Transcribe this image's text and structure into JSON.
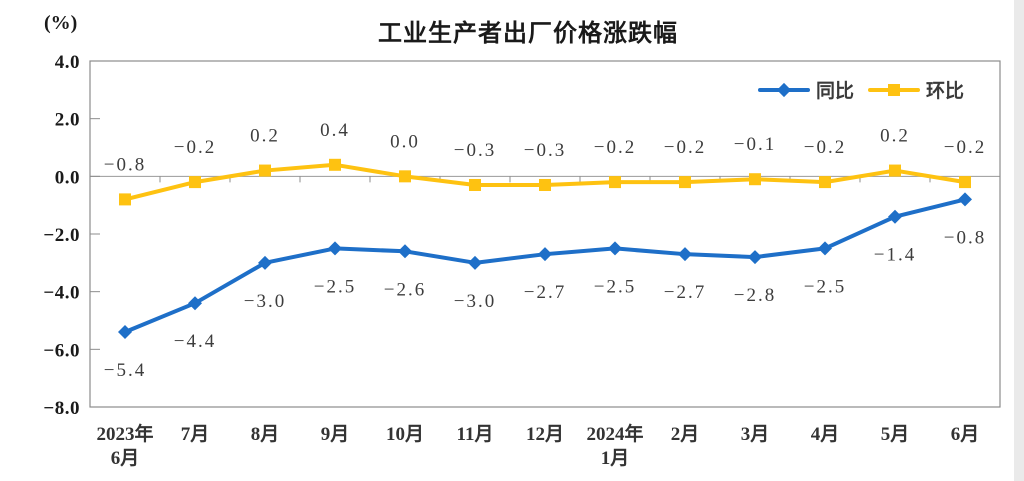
{
  "chart_data": {
    "type": "line",
    "title": "工业生产者出厂价格涨跌幅",
    "ylabel": "(%)",
    "xlabel": "",
    "ylim": [
      -8.0,
      4.0
    ],
    "yticks": [
      4.0,
      2.0,
      0.0,
      -2.0,
      -4.0,
      -6.0,
      -8.0
    ],
    "grid": "zero-line-only",
    "legend_position": "top-right",
    "axis_color": "#8c8c8c",
    "label_color": "#3d3d3d",
    "categories": [
      "2023年\n6月",
      "7月",
      "8月",
      "9月",
      "10月",
      "11月",
      "12月",
      "2024年\n1月",
      "2月",
      "3月",
      "4月",
      "5月",
      "6月"
    ],
    "series": [
      {
        "name": "同比",
        "color": "#1E6FC8",
        "marker": "diamond",
        "label_position": "below",
        "values": [
          -5.4,
          -4.4,
          -3.0,
          -2.5,
          -2.6,
          -3.0,
          -2.7,
          -2.5,
          -2.7,
          -2.8,
          -2.5,
          -1.4,
          -0.8
        ]
      },
      {
        "name": "环比",
        "color": "#FEC211",
        "marker": "square",
        "label_position": "above",
        "values": [
          -0.8,
          -0.2,
          0.2,
          0.4,
          0.0,
          -0.3,
          -0.3,
          -0.2,
          -0.2,
          -0.1,
          -0.2,
          0.2,
          -0.2
        ]
      }
    ]
  }
}
